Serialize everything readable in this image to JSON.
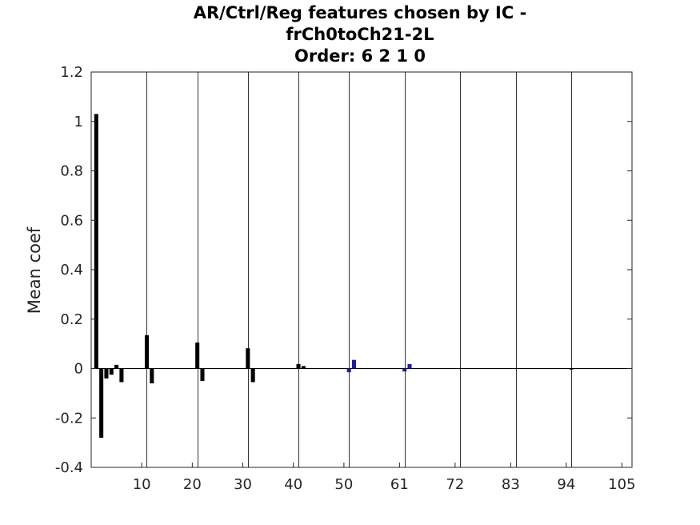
{
  "chart_data": {
    "type": "bar",
    "title_lines": [
      "AR/Ctrl/Reg features chosen by IC -",
      "frCh0toCh21-2L",
      "Order: 6 2 1 0"
    ],
    "xlabel": "",
    "ylabel": "Mean coef",
    "xlim": [
      0,
      107
    ],
    "ylim": [
      -0.4,
      1.2
    ],
    "xticks": [
      10,
      20,
      30,
      40,
      50,
      61,
      72,
      83,
      94,
      105
    ],
    "yticks": [
      -0.4,
      -0.2,
      0,
      0.2,
      0.4,
      0.6,
      0.8,
      1,
      1.2
    ],
    "ytick_labels": [
      "-0.4",
      "-0.2",
      "0",
      "0.2",
      "0.4",
      "0.6",
      "0.8",
      "1",
      "1.2"
    ],
    "group_lines": [
      11,
      21,
      31,
      41,
      51,
      62,
      73,
      84,
      95
    ],
    "bar_width": 0.8,
    "grid": false,
    "series": [
      {
        "color": "#000000",
        "x": [
          1,
          2,
          3,
          4,
          5,
          6,
          11,
          12,
          21,
          22,
          31,
          32,
          41,
          42,
          95
        ],
        "values": [
          1.03,
          -0.28,
          -0.04,
          -0.025,
          0.015,
          -0.055,
          0.135,
          -0.06,
          0.105,
          -0.05,
          0.082,
          -0.055,
          0.018,
          0.01,
          -0.004
        ]
      },
      {
        "color": "#1c1ca8",
        "x": [
          51,
          52,
          62,
          63
        ],
        "values": [
          -0.015,
          0.035,
          -0.012,
          0.018
        ]
      }
    ]
  }
}
